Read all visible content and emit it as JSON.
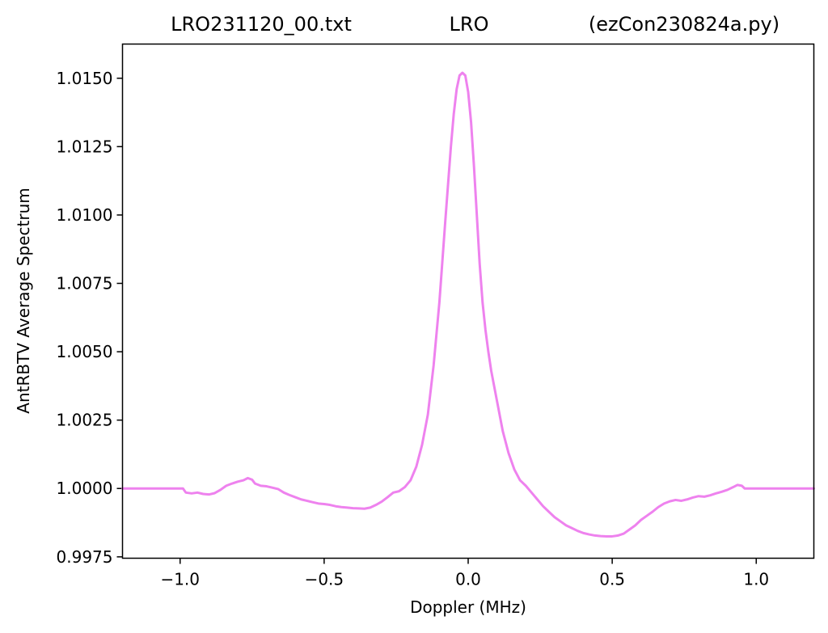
{
  "chart_data": {
    "type": "line",
    "title_left": "LRO231120_00.txt",
    "title_center": "LRO",
    "title_right": "(ezCon230824a.py)",
    "xlabel": "Doppler (MHz)",
    "ylabel": "AntRBTV Average Spectrum",
    "xlim": [
      -1.2,
      1.2
    ],
    "ylim": [
      0.99745,
      1.01625
    ],
    "xticks": [
      -1.0,
      -0.5,
      0.0,
      0.5,
      1.0
    ],
    "xtick_labels": [
      "−1.0",
      "−0.5",
      "0.0",
      "0.5",
      "1.0"
    ],
    "yticks": [
      0.9975,
      1.0,
      1.0025,
      1.005,
      1.0075,
      1.01,
      1.0125,
      1.015
    ],
    "ytick_labels": [
      "0.9975",
      "1.0000",
      "1.0025",
      "1.0050",
      "1.0075",
      "1.0100",
      "1.0125",
      "1.0150"
    ],
    "grid": false,
    "line_color": "#ee82ee",
    "series": [
      {
        "x": [
          -1.2,
          -1.0,
          -0.99,
          -0.98,
          -0.96,
          -0.94,
          -0.92,
          -0.9,
          -0.88,
          -0.86,
          -0.84,
          -0.82,
          -0.8,
          -0.78,
          -0.765,
          -0.75,
          -0.74,
          -0.72,
          -0.7,
          -0.68,
          -0.66,
          -0.64,
          -0.62,
          -0.6,
          -0.58,
          -0.56,
          -0.54,
          -0.52,
          -0.5,
          -0.48,
          -0.46,
          -0.44,
          -0.42,
          -0.4,
          -0.38,
          -0.36,
          -0.34,
          -0.32,
          -0.3,
          -0.28,
          -0.26,
          -0.24,
          -0.22,
          -0.2,
          -0.18,
          -0.16,
          -0.14,
          -0.12,
          -0.1,
          -0.08,
          -0.06,
          -0.05,
          -0.04,
          -0.03,
          -0.02,
          -0.01,
          0.0,
          0.01,
          0.02,
          0.03,
          0.04,
          0.05,
          0.06,
          0.07,
          0.08,
          0.1,
          0.12,
          0.14,
          0.16,
          0.18,
          0.2,
          0.22,
          0.24,
          0.26,
          0.28,
          0.3,
          0.32,
          0.34,
          0.36,
          0.38,
          0.4,
          0.42,
          0.44,
          0.46,
          0.48,
          0.5,
          0.52,
          0.54,
          0.56,
          0.58,
          0.6,
          0.62,
          0.64,
          0.66,
          0.68,
          0.7,
          0.72,
          0.74,
          0.76,
          0.78,
          0.8,
          0.82,
          0.84,
          0.86,
          0.88,
          0.9,
          0.92,
          0.935,
          0.95,
          0.96,
          0.98,
          1.0,
          1.2
        ],
        "y": [
          1.0,
          1.0,
          1.0,
          0.99985,
          0.99982,
          0.99985,
          0.9998,
          0.99978,
          0.99983,
          0.99995,
          1.0001,
          1.00018,
          1.00025,
          1.0003,
          1.00038,
          1.00032,
          1.00018,
          1.0001,
          1.00008,
          1.00003,
          0.99998,
          0.99985,
          0.99976,
          0.99968,
          0.9996,
          0.99955,
          0.9995,
          0.99945,
          0.99943,
          0.9994,
          0.99935,
          0.99932,
          0.9993,
          0.99928,
          0.99927,
          0.99926,
          0.9993,
          0.9994,
          0.99952,
          0.99968,
          0.99985,
          0.9999,
          1.00005,
          1.0003,
          1.0008,
          1.0016,
          1.0027,
          1.0045,
          1.0068,
          1.0097,
          1.0125,
          1.0137,
          1.0146,
          1.0151,
          1.0152,
          1.0151,
          1.0145,
          1.0134,
          1.0118,
          1.01,
          1.0082,
          1.0068,
          1.0058,
          1.005,
          1.0043,
          1.0032,
          1.0021,
          1.0013,
          1.0007,
          1.0003,
          1.0001,
          0.99985,
          0.9996,
          0.99935,
          0.99915,
          0.99895,
          0.9988,
          0.99865,
          0.99855,
          0.99845,
          0.99837,
          0.99832,
          0.99828,
          0.99826,
          0.99825,
          0.99825,
          0.99828,
          0.99835,
          0.9985,
          0.99865,
          0.99885,
          0.999,
          0.99915,
          0.99932,
          0.99945,
          0.99953,
          0.99958,
          0.99955,
          0.9996,
          0.99967,
          0.99972,
          0.9997,
          0.99975,
          0.99982,
          0.99988,
          0.99995,
          1.00005,
          1.00013,
          1.0001,
          1.0,
          1.0,
          1.0,
          1.0
        ]
      }
    ]
  }
}
